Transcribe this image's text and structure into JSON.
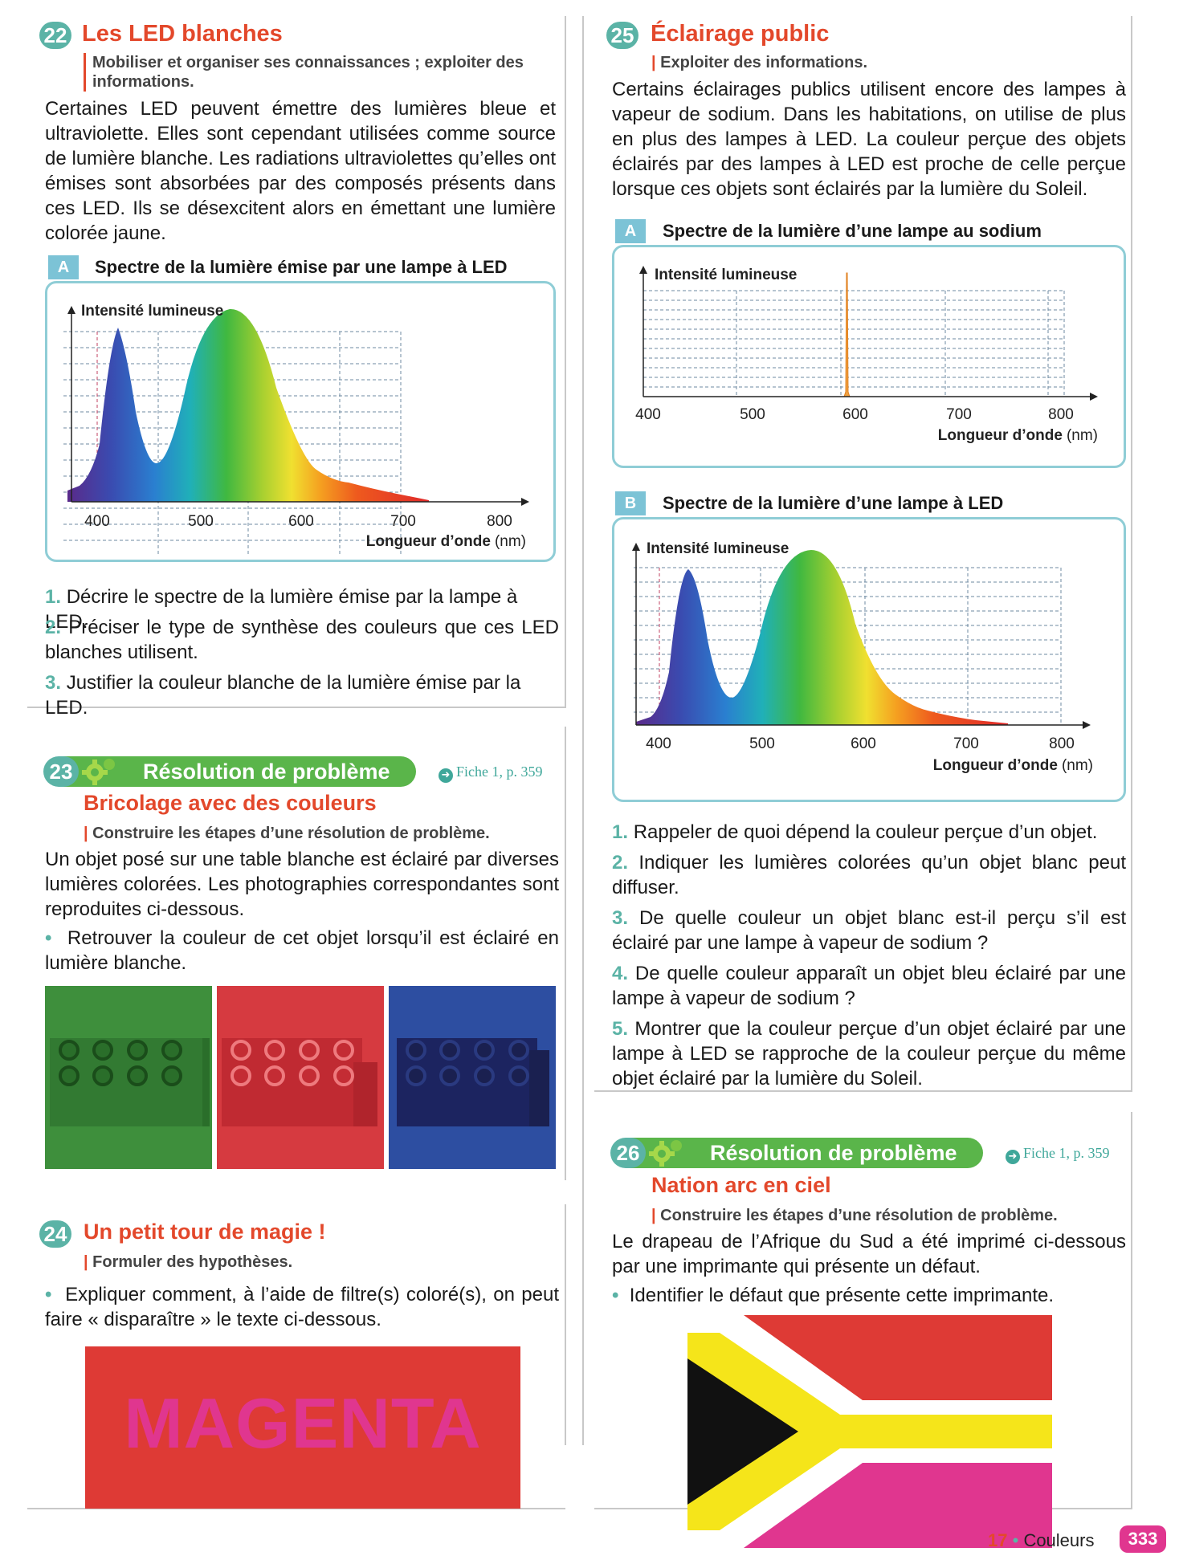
{
  "ex22": {
    "num": "22",
    "title": "Les LED blanches",
    "skill": "Mobiliser et organiser ses connaissances ; exploiter des informations.",
    "text": "Certaines LED peuvent émettre des lumières bleue et ultraviolette. Elles sont cependant utilisées comme source de lumière blanche. Les radiations ultraviolettes qu’elles ont émises sont absorbées par des composés présents dans ces LED. Ils se désexcitent alors en émettant une lumière colorée jaune.",
    "doc": {
      "label": "A",
      "title": "Spectre de la lumière émise par une lampe à LED",
      "ylabel": "Intensité lumineuse",
      "xticks": [
        "400",
        "500",
        "600",
        "700",
        "800"
      ],
      "xlabel_bold": "Longueur d’onde",
      "xlabel_unit": "(nm)"
    },
    "questions": [
      {
        "n": "1.",
        "t": "Décrire le spectre de la lumière émise par la lampe à LED."
      },
      {
        "n": "2.",
        "t": "Préciser le type de synthèse des couleurs que ces LED blanches utilisent."
      },
      {
        "n": "3.",
        "t": "Justifier la couleur blanche de la lumière émise par la LED."
      }
    ]
  },
  "ex23": {
    "num": "23",
    "banner": "Résolution de problème",
    "fiche": "Fiche 1, p. 359",
    "title": "Bricolage avec des couleurs",
    "skill": "Construire les étapes d’une résolution de problème.",
    "text": "Un objet posé sur une table blanche est éclairé par diverses lumières colorées. Les photographies correspondantes sont reproduites ci-dessous.",
    "bullet": "Retrouver la couleur de cet objet lorsqu’il est éclairé en lumière blanche.",
    "photo_colors": [
      "#3e8f3c",
      "#d63a40",
      "#2d4ea1"
    ]
  },
  "ex24": {
    "num": "24",
    "title": "Un petit tour de magie !",
    "skill": "Formuler des hypothèses.",
    "bullet": "Expliquer comment, à l’aide de filtre(s) coloré(s), on peut faire « disparaître » le texte ci-dessous.",
    "magic_word": "MAGENTA",
    "bg_color": "#de3a35",
    "word_color": "#e0368f"
  },
  "ex25": {
    "num": "25",
    "title": "Éclairage public",
    "skill": "Exploiter des informations.",
    "text": "Certains éclairages publics utilisent encore des lampes à vapeur de sodium. Dans les habitations, on utilise de plus en plus des lampes à LED. La couleur perçue des objets éclairés par des lampes à LED est proche de celle perçue lorsque ces objets sont éclairés par la lumière du Soleil.",
    "docA": {
      "label": "A",
      "title": "Spectre de la lumière d’une lampe au sodium",
      "ylabel": "Intensité lumineuse",
      "xticks": [
        "400",
        "500",
        "600",
        "700",
        "800"
      ],
      "xlabel_bold": "Longueur d’onde",
      "xlabel_unit": "(nm)"
    },
    "docB": {
      "label": "B",
      "title": "Spectre de la lumière d’une lampe à LED",
      "ylabel": "Intensité lumineuse",
      "xticks": [
        "400",
        "500",
        "600",
        "700",
        "800"
      ],
      "xlabel_bold": "Longueur d’onde",
      "xlabel_unit": "(nm)"
    },
    "questions": [
      {
        "n": "1.",
        "t": "Rappeler de quoi dépend la couleur perçue d’un objet."
      },
      {
        "n": "2.",
        "t": "Indiquer les lumières colorées qu’un objet blanc peut diffuser."
      },
      {
        "n": "3.",
        "t": "De quelle couleur un objet blanc est-il perçu s’il est éclairé par une lampe à vapeur de sodium ?"
      },
      {
        "n": "4.",
        "t": "De quelle couleur apparaît un objet bleu éclairé par une lampe à vapeur de sodium ?"
      },
      {
        "n": "5.",
        "t": "Montrer que la couleur perçue d’un objet éclairé par une lampe à LED se rapproche de la couleur perçue du même objet éclairé par la lumière du Soleil."
      }
    ]
  },
  "ex26": {
    "num": "26",
    "banner": "Résolution de problème",
    "fiche": "Fiche 1, p. 359",
    "title": "Nation arc en ciel",
    "skill": "Construire les étapes d’une résolution de problème.",
    "text": "Le drapeau de l’Afrique du Sud a été imprimé ci-dessous par une imprimante qui présente un défaut.",
    "bullet": "Identifier le défaut que présente cette imprimante.",
    "flag_colors": {
      "top": "#de3a35",
      "band": "#f5e51a",
      "bottom": "#e0368f",
      "triangle": "#111111",
      "border": "#ffffff"
    }
  },
  "footer": {
    "chapter": "17",
    "dot": "•",
    "name": "Couleurs",
    "page": "333"
  }
}
